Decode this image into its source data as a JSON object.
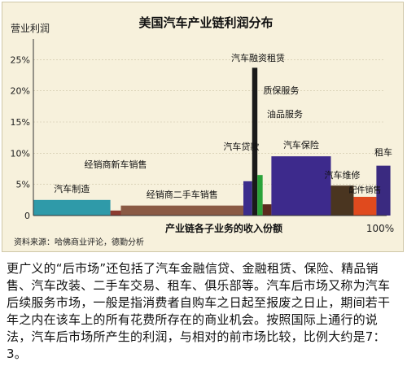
{
  "chart_data": {
    "type": "bar",
    "subtype": "variable-width",
    "title": "美国汽车产业链利润分布",
    "ylabel": "营业利润",
    "xlabel": "产业链各子业务的收入份额",
    "x_end_label": "100%",
    "yticks": [
      "0",
      "5%",
      "10%",
      "15%",
      "20%",
      "25%"
    ],
    "ylim": [
      0,
      27
    ],
    "xlim": [
      0,
      100
    ],
    "bars": [
      {
        "label": "汽车制造",
        "x_start": 0,
        "x_end": 22,
        "value": 2.5,
        "color": "#2f9aa9"
      },
      {
        "label": "经销商新车销售",
        "x_start": 22,
        "x_end": 25,
        "value": 0.8,
        "color": "#8c3b2f"
      },
      {
        "label": "经销商二手车销售",
        "x_start": 25,
        "x_end": 60,
        "value": 1.6,
        "color": "#8a5a44"
      },
      {
        "label": "汽车贷款",
        "x_start": 60,
        "x_end": 62.5,
        "value": 5.5,
        "color": "#3b2c8c"
      },
      {
        "label": "汽车融资租赁",
        "x_start": 62.5,
        "x_end": 64,
        "value": 23.7,
        "color": "#1a1a1a"
      },
      {
        "label": "质保服务",
        "x_start": 64,
        "x_end": 65.5,
        "value": 6.5,
        "color": "#2aa33a"
      },
      {
        "label": "油品服务",
        "x_start": 65.5,
        "x_end": 68,
        "value": 1.8,
        "color": "#5c2a1e"
      },
      {
        "label": "汽车保险",
        "x_start": 68,
        "x_end": 85,
        "value": 9.5,
        "color": "#3d2a8c"
      },
      {
        "label": "汽车维修",
        "x_start": 85,
        "x_end": 91.5,
        "value": 4.8,
        "color": "#4a3520"
      },
      {
        "label": "配件销售",
        "x_start": 91.5,
        "x_end": 98,
        "value": 3.0,
        "color": "#e04a1e"
      },
      {
        "label": "租车",
        "x_start": 98,
        "x_end": 102,
        "value": 8.0,
        "color": "#3a2a80"
      }
    ]
  },
  "source_note": "资料来源：哈佛商业评论，德勤分析",
  "body_text": "更广义的“后市场”还包括了汽车金融信贷、金融租赁、保险、精品销售、汽车改装、二手车交易、租车、俱乐部等。汽车后市场又称为汽车后续服务市场，一般是指消费者自购车之日起至报废之日止，期间若干年之内在该车上的所有花费所存在的商业机会。按照国际上通行的说法，汽车后市场所产生的利润，与相对的前市场比较，比例大约是7：3。"
}
